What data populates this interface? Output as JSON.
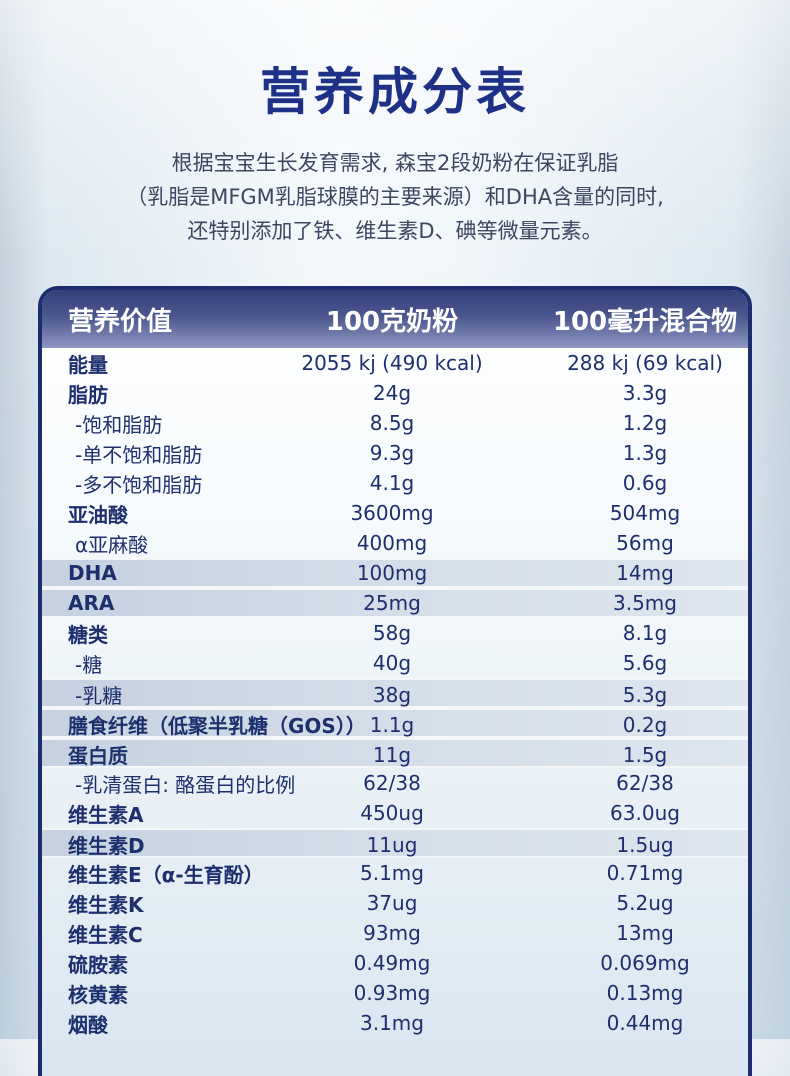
{
  "page": {
    "title": "营养成分表",
    "description_lines": [
      "根据宝宝生长发育需求, 森宝2段奶粉在保证乳脂",
      "（乳脂是MFGM乳脂球膜的主要来源）和DHA含量的同时,",
      "还特别添加了铁、维生素D、碘等微量元素。"
    ]
  },
  "table": {
    "columns": [
      "营养价值",
      "100克奶粉",
      "100毫升混合物"
    ],
    "rows": [
      {
        "label": "能量",
        "per_100g": "2055 kj (490 kcal)",
        "per_100ml": "288 kj (69 kcal)",
        "indent": false,
        "highlight": false
      },
      {
        "label": "脂肪",
        "per_100g": "24g",
        "per_100ml": "3.3g",
        "indent": false,
        "highlight": false
      },
      {
        "label": "-饱和脂肪",
        "per_100g": "8.5g",
        "per_100ml": "1.2g",
        "indent": true,
        "highlight": false
      },
      {
        "label": "-单不饱和脂肪",
        "per_100g": "9.3g",
        "per_100ml": "1.3g",
        "indent": true,
        "highlight": false
      },
      {
        "label": "-多不饱和脂肪",
        "per_100g": "4.1g",
        "per_100ml": "0.6g",
        "indent": true,
        "highlight": false
      },
      {
        "label": "亚油酸",
        "per_100g": "3600mg",
        "per_100ml": "504mg",
        "indent": false,
        "highlight": false
      },
      {
        "label": "α亚麻酸",
        "per_100g": "400mg",
        "per_100ml": "56mg",
        "indent": true,
        "highlight": false
      },
      {
        "label": "DHA",
        "per_100g": "100mg",
        "per_100ml": "14mg",
        "indent": false,
        "highlight": true
      },
      {
        "label": "ARA",
        "per_100g": "25mg",
        "per_100ml": "3.5mg",
        "indent": false,
        "highlight": true
      },
      {
        "label": "糖类",
        "per_100g": "58g",
        "per_100ml": "8.1g",
        "indent": false,
        "highlight": false
      },
      {
        "label": "-糖",
        "per_100g": "40g",
        "per_100ml": "5.6g",
        "indent": true,
        "highlight": false
      },
      {
        "label": "-乳糖",
        "per_100g": "38g",
        "per_100ml": "5.3g",
        "indent": true,
        "highlight": true
      },
      {
        "label": "膳食纤维（低聚半乳糖（GOS））",
        "per_100g": "1.1g",
        "per_100ml": "0.2g",
        "indent": false,
        "highlight": true
      },
      {
        "label": "蛋白质",
        "per_100g": "11g",
        "per_100ml": "1.5g",
        "indent": false,
        "highlight": true
      },
      {
        "label": "-乳清蛋白: 酪蛋白的比例",
        "per_100g": "62/38",
        "per_100ml": "62/38",
        "indent": true,
        "highlight": false
      },
      {
        "label": "维生素A",
        "per_100g": "450ug",
        "per_100ml": "63.0ug",
        "indent": false,
        "highlight": false
      },
      {
        "label": "维生素D",
        "per_100g": "11ug",
        "per_100ml": "1.5ug",
        "indent": false,
        "highlight": true
      },
      {
        "label": "维生素E（α-生育酚）",
        "per_100g": "5.1mg",
        "per_100ml": "0.71mg",
        "indent": false,
        "highlight": false
      },
      {
        "label": "维生素K",
        "per_100g": "37ug",
        "per_100ml": "5.2ug",
        "indent": false,
        "highlight": false
      },
      {
        "label": "维生素C",
        "per_100g": "93mg",
        "per_100ml": "13mg",
        "indent": false,
        "highlight": false
      },
      {
        "label": "硫胺素",
        "per_100g": "0.49mg",
        "per_100ml": "0.069mg",
        "indent": false,
        "highlight": false
      },
      {
        "label": "核黄素",
        "per_100g": "0.93mg",
        "per_100ml": "0.13mg",
        "indent": false,
        "highlight": false
      },
      {
        "label": "烟酸",
        "per_100g": "3.1mg",
        "per_100ml": "0.44mg",
        "indent": false,
        "highlight": false
      }
    ]
  },
  "colors": {
    "title_text": "#1e3187",
    "description_text": "#3d4761",
    "table_border": "#1d2c6d",
    "header_gradient_top": "#353f7b",
    "header_gradient_bottom": "#8d97c1",
    "header_text": "#ffffff",
    "body_text": "#1e2f6e",
    "highlight_row": "#c5d1e0",
    "page_background": "#e9f1f7"
  }
}
